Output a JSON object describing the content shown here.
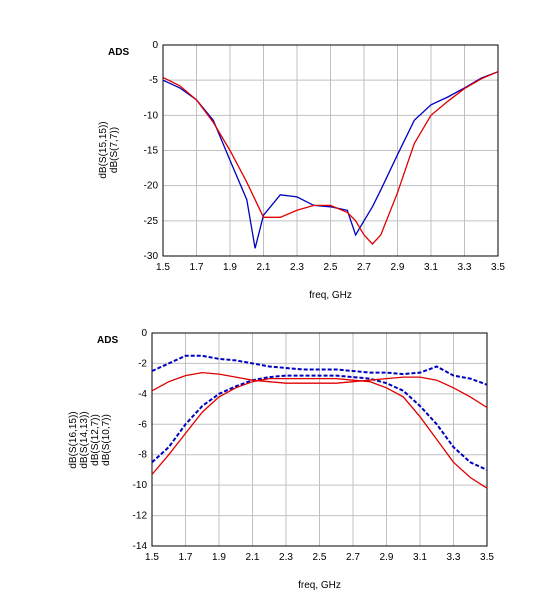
{
  "chart_data": [
    {
      "type": "line",
      "watermark": "ADS",
      "x_label": "freq, GHz",
      "x": [
        1.5,
        1.6,
        1.7,
        1.8,
        1.9,
        2.0,
        2.05,
        2.1,
        2.2,
        2.3,
        2.4,
        2.5,
        2.6,
        2.65,
        2.7,
        2.75,
        2.8,
        2.9,
        3.0,
        3.1,
        3.2,
        3.3,
        3.4,
        3.5
      ],
      "series": [
        {
          "name": "dB(S(15,15))",
          "color": "#0000c0",
          "style": "solid",
          "values": [
            -5,
            -6.1,
            -7.8,
            -10.7,
            -16.4,
            -22,
            -28.9,
            -24.2,
            -21.3,
            -21.6,
            -22.8,
            -23,
            -23.5,
            -27,
            -25,
            -23,
            -20.6,
            -15.6,
            -10.7,
            -8.5,
            -7.4,
            -6.1,
            -4.7,
            -3.8
          ]
        },
        {
          "name": "dB(S(7,7))",
          "color": "#e00000",
          "style": "solid",
          "values": [
            -4.6,
            -5.8,
            -7.8,
            -11,
            -15,
            -19.5,
            -22,
            -24.5,
            -24.5,
            -23.5,
            -22.8,
            -22.8,
            -23.8,
            -25,
            -27,
            -28.3,
            -27,
            -21,
            -14,
            -10,
            -8,
            -6.2,
            -4.8,
            -3.8
          ]
        }
      ],
      "xlim": [
        1.5,
        3.5
      ],
      "xticks": [
        1.5,
        1.7,
        1.9,
        2.1,
        2.3,
        2.5,
        2.7,
        2.9,
        3.1,
        3.3,
        3.5
      ],
      "ylim": [
        -30,
        0
      ],
      "yticks": [
        0,
        -5,
        -10,
        -15,
        -20,
        -25,
        -30
      ],
      "grid": true
    },
    {
      "type": "line",
      "watermark": "ADS",
      "x_label": "freq, GHz",
      "x": [
        1.5,
        1.6,
        1.7,
        1.8,
        1.9,
        2.0,
        2.1,
        2.2,
        2.3,
        2.4,
        2.5,
        2.6,
        2.7,
        2.8,
        2.9,
        3.0,
        3.1,
        3.2,
        3.3,
        3.4,
        3.5
      ],
      "series": [
        {
          "name": "dB(S(16,15))",
          "color": "#0000c0",
          "style": "dashed",
          "values": [
            -2.5,
            -2.0,
            -1.5,
            -1.5,
            -1.7,
            -1.8,
            -2.0,
            -2.2,
            -2.3,
            -2.4,
            -2.4,
            -2.4,
            -2.5,
            -2.6,
            -2.6,
            -2.7,
            -2.6,
            -2.2,
            -2.8,
            -3.0,
            -3.4
          ]
        },
        {
          "name": "dB(S(14,13))",
          "color": "#0000c0",
          "style": "dashed",
          "values": [
            -8.5,
            -7.5,
            -6.0,
            -4.8,
            -4.0,
            -3.5,
            -3.1,
            -2.9,
            -2.8,
            -2.8,
            -2.8,
            -2.8,
            -2.9,
            -3.0,
            -3.3,
            -3.8,
            -4.8,
            -6.0,
            -7.5,
            -8.5,
            -9.0
          ]
        },
        {
          "name": "dB(S(12,7))",
          "color": "#e00000",
          "style": "solid",
          "values": [
            -3.8,
            -3.2,
            -2.8,
            -2.6,
            -2.7,
            -2.9,
            -3.1,
            -3.2,
            -3.3,
            -3.3,
            -3.3,
            -3.3,
            -3.2,
            -3.1,
            -3.0,
            -2.9,
            -2.9,
            -3.1,
            -3.6,
            -4.2,
            -4.9
          ]
        },
        {
          "name": "dB(S(10,7))",
          "color": "#e00000",
          "style": "solid",
          "values": [
            -9.3,
            -8.0,
            -6.6,
            -5.2,
            -4.2,
            -3.6,
            -3.2,
            -3.0,
            -3.0,
            -3.0,
            -3.0,
            -3.0,
            -3.1,
            -3.2,
            -3.6,
            -4.2,
            -5.5,
            -7.0,
            -8.5,
            -9.5,
            -10.2
          ]
        }
      ],
      "xlim": [
        1.5,
        3.5
      ],
      "xticks": [
        1.5,
        1.7,
        1.9,
        2.1,
        2.3,
        2.5,
        2.7,
        2.9,
        3.1,
        3.3,
        3.5
      ],
      "ylim": [
        -14,
        0
      ],
      "yticks": [
        0,
        -2,
        -4,
        -6,
        -8,
        -10,
        -12,
        -14
      ],
      "grid": true
    }
  ]
}
